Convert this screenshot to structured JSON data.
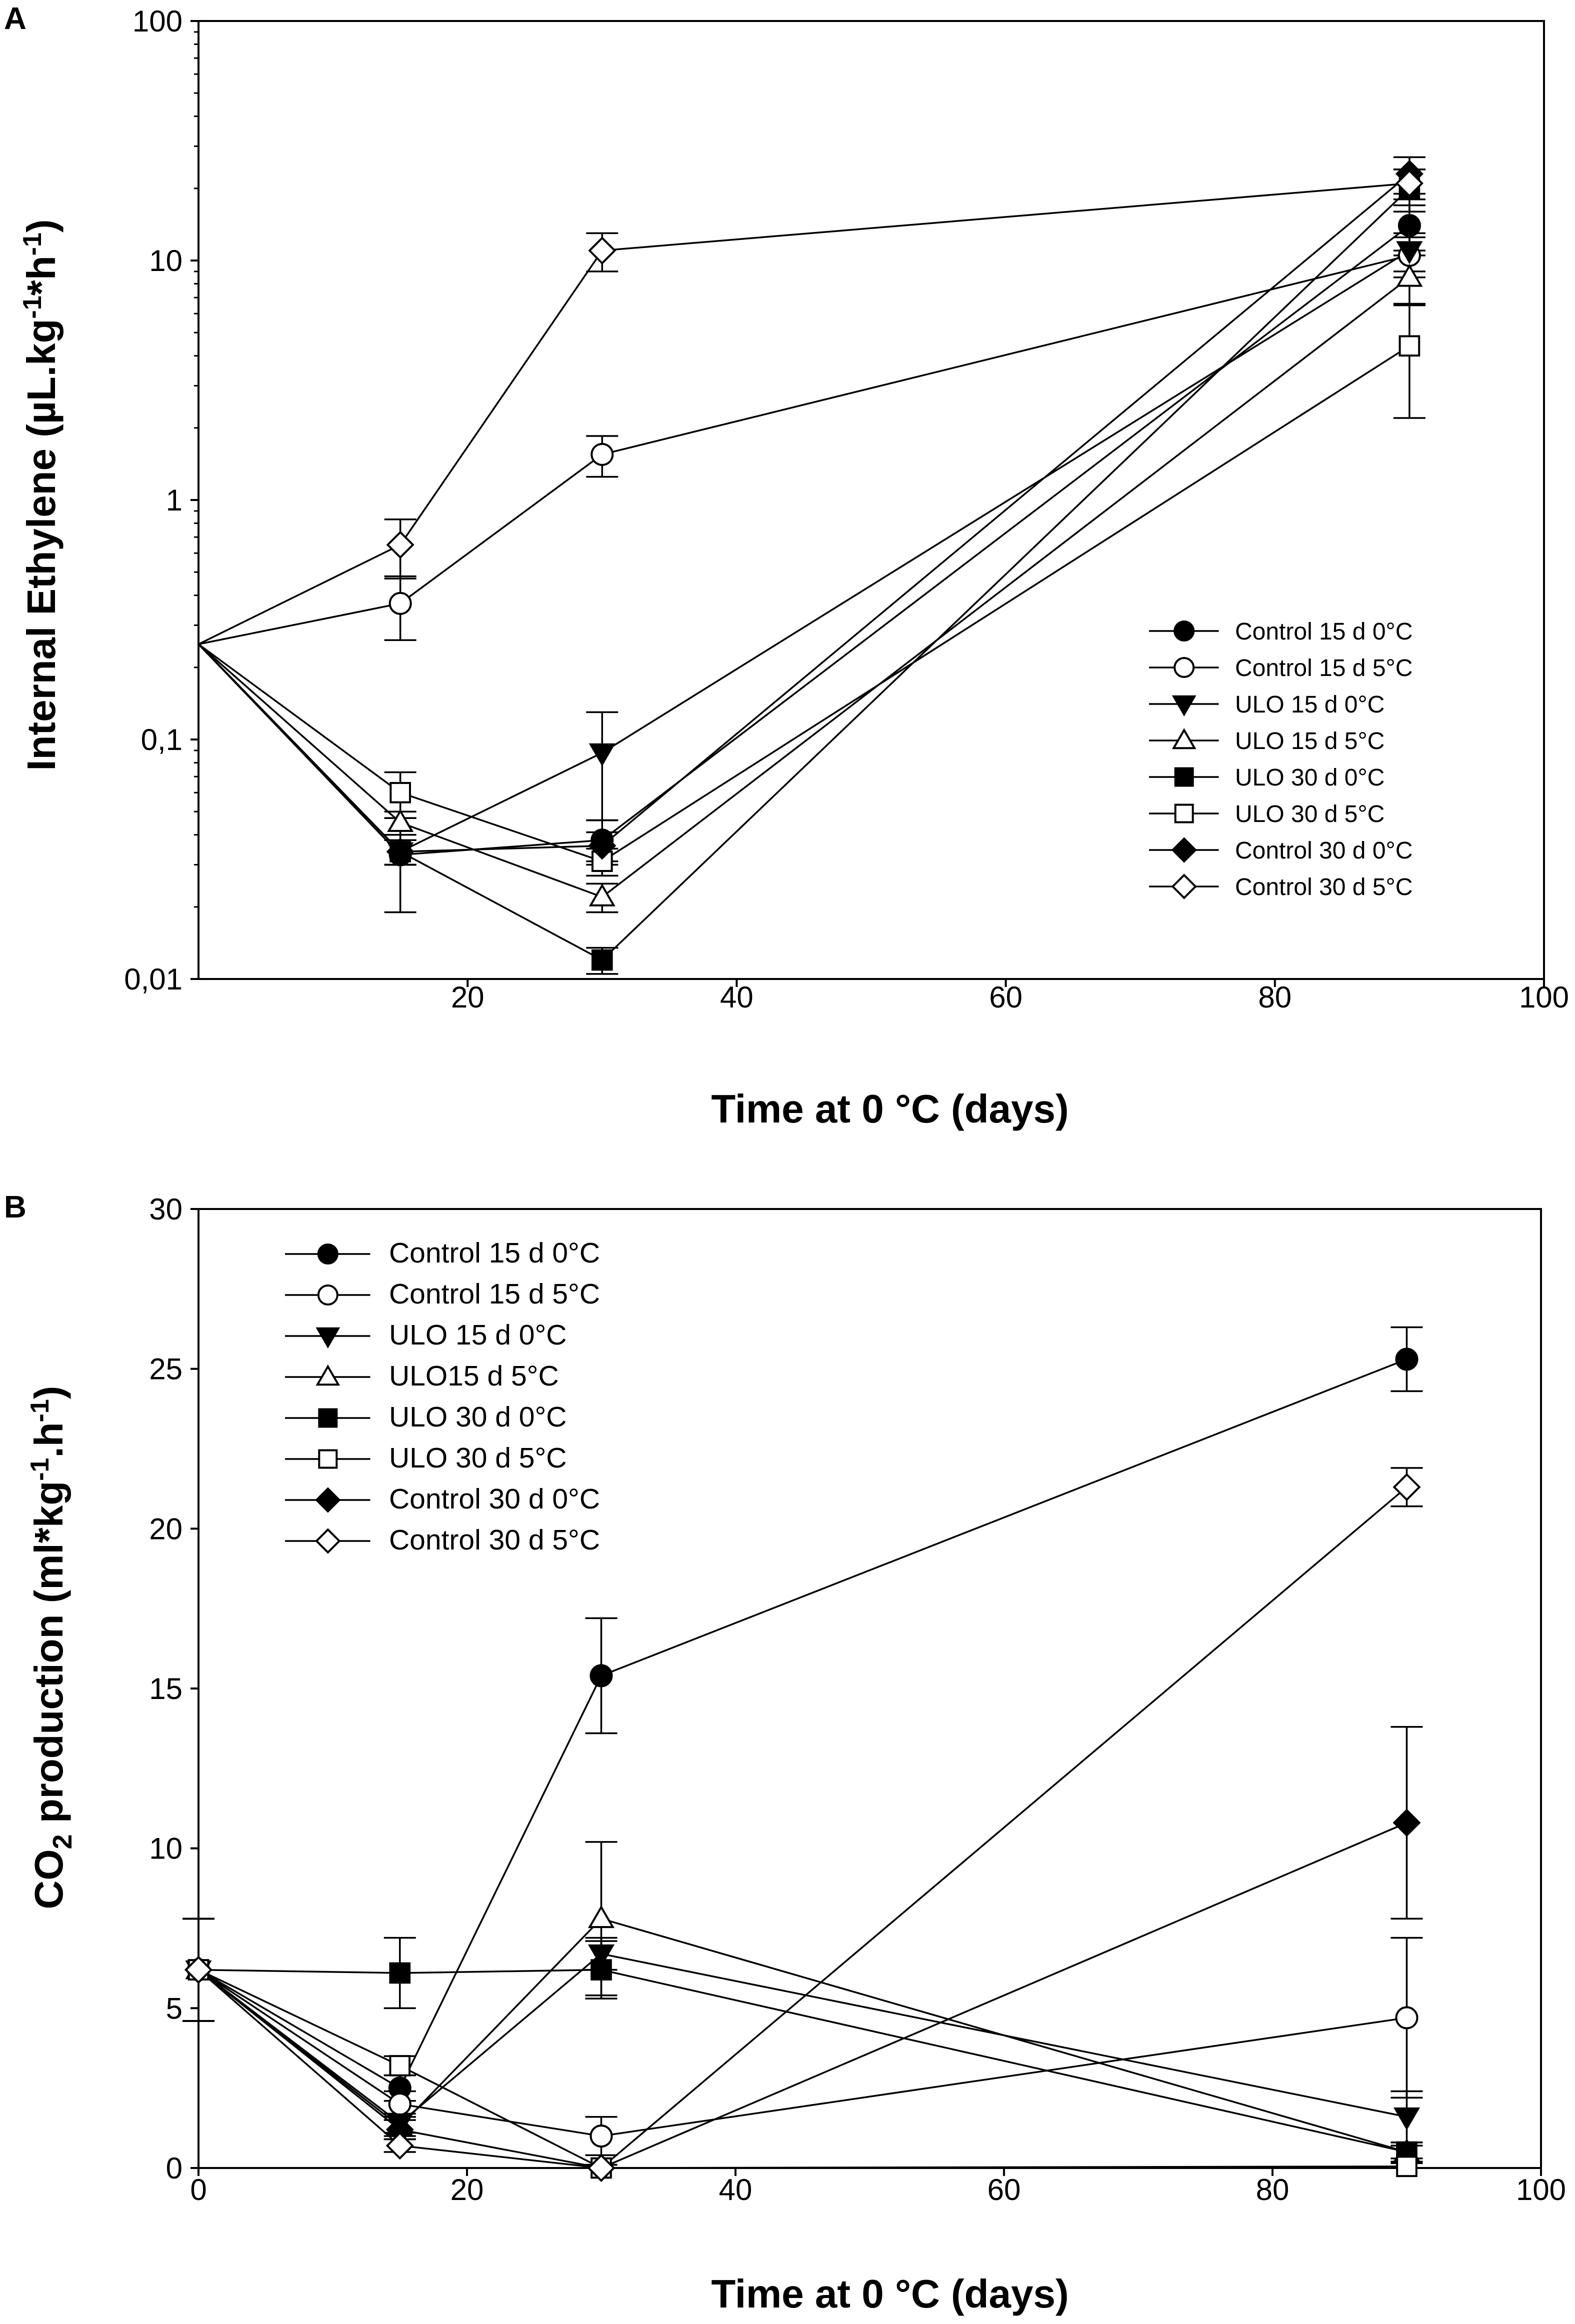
{
  "chart_data": [
    {
      "panel": "A",
      "type": "line",
      "yscale": "log",
      "xlabel": "Time at 0 °C (days)",
      "ylabel": "Internal Ethylene (µL.kg-1*h-1)",
      "ylabel_parts": {
        "a": "Internal Ethylene (µL.kg",
        "sup1": "-1",
        "b": "*h",
        "sup2": "-1",
        "c": ")"
      },
      "xlim": [
        0,
        100
      ],
      "ylim": [
        0.01,
        100
      ],
      "xticks": [
        20,
        40,
        60,
        80,
        100
      ],
      "xtick_labels": [
        "20",
        "40",
        "60",
        "80",
        "100"
      ],
      "yticks": [
        0.01,
        0.1,
        1,
        10,
        100
      ],
      "ytick_labels": [
        "0,01",
        "0,1",
        "1",
        "10",
        "100"
      ],
      "legend_position": "center-right",
      "series": [
        {
          "name": "Control 15 d 0°C",
          "marker": "circle",
          "filled": true,
          "x": [
            0,
            15,
            30,
            90
          ],
          "y": [
            0.25,
            0.033,
            0.038,
            14
          ],
          "err": [
            0,
            0.014,
            0.008,
            3
          ]
        },
        {
          "name": "Control 15 d 5°C",
          "marker": "circle",
          "filled": false,
          "x": [
            0,
            15,
            30,
            90
          ],
          "y": [
            0.25,
            0.37,
            1.55,
            10.5
          ],
          "err": [
            0,
            0.11,
            0.3,
            2
          ]
        },
        {
          "name": "ULO 15 d 0°C",
          "marker": "triangle-down",
          "filled": true,
          "x": [
            0,
            15,
            30,
            90
          ],
          "y": [
            0.25,
            0.034,
            0.088,
            11
          ],
          "err": [
            0,
            0.004,
            0.042,
            2
          ]
        },
        {
          "name": "ULO 15 d 5°C",
          "marker": "triangle-up",
          "filled": false,
          "x": [
            0,
            15,
            30,
            90
          ],
          "y": [
            0.25,
            0.045,
            0.022,
            8.5
          ],
          "err": [
            0,
            0.005,
            0.003,
            2
          ]
        },
        {
          "name": "ULO 30 d 0°C",
          "marker": "square",
          "filled": true,
          "x": [
            0,
            15,
            30,
            90
          ],
          "y": [
            0.25,
            0.034,
            0.012,
            20
          ],
          "err": [
            0,
            0.004,
            0.0015,
            4
          ]
        },
        {
          "name": "ULO 30 d 5°C",
          "marker": "square",
          "filled": false,
          "x": [
            0,
            15,
            30,
            90
          ],
          "y": [
            0.25,
            0.06,
            0.031,
            4.4
          ],
          "err": [
            0,
            0.013,
            0.004,
            2.2
          ]
        },
        {
          "name": "Control 30 d 0°C",
          "marker": "diamond",
          "filled": true,
          "x": [
            0,
            15,
            30,
            90
          ],
          "y": [
            0.25,
            0.034,
            0.036,
            23
          ],
          "err": [
            0,
            0.004,
            0.005,
            4
          ]
        },
        {
          "name": "Control 30 d 5°C",
          "marker": "diamond",
          "filled": false,
          "x": [
            0,
            15,
            30,
            90
          ],
          "y": [
            0.25,
            0.65,
            11,
            21
          ],
          "err": [
            0,
            0.18,
            2,
            3
          ]
        }
      ]
    },
    {
      "panel": "B",
      "type": "line",
      "yscale": "linear",
      "xlabel": "Time at 0 °C (days)",
      "ylabel": "CO2 production (ml*kg-1.h-1)",
      "ylabel_parts": {
        "a": "CO",
        "sub": "2",
        "b": " production (ml*kg",
        "sup1": "-1",
        "c": ".h",
        "sup2": "-1",
        "d": ")"
      },
      "xlim": [
        0,
        100
      ],
      "ylim": [
        0,
        30
      ],
      "xticks": [
        0,
        20,
        40,
        60,
        80,
        100
      ],
      "xtick_labels": [
        "0",
        "20",
        "40",
        "60",
        "80",
        "100"
      ],
      "yticks": [
        0,
        5,
        10,
        15,
        20,
        25,
        30
      ],
      "ytick_labels": [
        "0",
        "5",
        "10",
        "15",
        "20",
        "25",
        "30"
      ],
      "legend_position": "top-left",
      "series": [
        {
          "name": "Control 15 d 0°C",
          "marker": "circle",
          "filled": true,
          "x": [
            0,
            15,
            30,
            90
          ],
          "y": [
            6.2,
            2.5,
            15.4,
            25.3
          ],
          "err": [
            1.6,
            0.4,
            1.8,
            1
          ]
        },
        {
          "name": "Control 15 d 5°C",
          "marker": "circle",
          "filled": false,
          "x": [
            0,
            15,
            30,
            90
          ],
          "y": [
            6.2,
            2.0,
            1.0,
            4.7
          ],
          "err": [
            1.6,
            0.4,
            0.6,
            2.5
          ]
        },
        {
          "name": "ULO 15 d 0°C",
          "marker": "triangle-down",
          "filled": true,
          "x": [
            0,
            15,
            30,
            90
          ],
          "y": [
            6.2,
            1.4,
            6.7,
            1.6
          ],
          "err": [
            1.6,
            0.3,
            0.5,
            0.8
          ]
        },
        {
          "name": "ULO15 d 5°C",
          "marker": "triangle-up",
          "filled": false,
          "x": [
            0,
            15,
            30,
            90
          ],
          "y": [
            6.2,
            1.3,
            7.8,
            0.5
          ],
          "err": [
            1.6,
            0.3,
            2.4,
            0.3
          ]
        },
        {
          "name": "ULO 30 d 0°C",
          "marker": "square",
          "filled": true,
          "x": [
            0,
            15,
            30,
            90
          ],
          "y": [
            6.2,
            6.1,
            6.2,
            0.5
          ],
          "err": [
            1.6,
            1.1,
            0.9,
            0.2
          ]
        },
        {
          "name": "ULO 30 d 5°C",
          "marker": "square",
          "filled": false,
          "x": [
            0,
            15,
            30,
            90
          ],
          "y": [
            6.2,
            3.2,
            0.0,
            0.05
          ],
          "err": [
            1.6,
            0.3,
            0.1,
            0.1
          ]
        },
        {
          "name": "Control 30 d 0°C",
          "marker": "diamond",
          "filled": true,
          "x": [
            0,
            15,
            30,
            90
          ],
          "y": [
            6.2,
            1.2,
            0.0,
            10.8
          ],
          "err": [
            1.6,
            0.3,
            0.1,
            3
          ]
        },
        {
          "name": "Control 30 d 5°C",
          "marker": "diamond",
          "filled": false,
          "x": [
            0,
            15,
            30,
            90
          ],
          "y": [
            6.2,
            0.7,
            0.0,
            21.3
          ],
          "err": [
            1.6,
            0.2,
            0.1,
            0.6
          ]
        }
      ]
    }
  ]
}
